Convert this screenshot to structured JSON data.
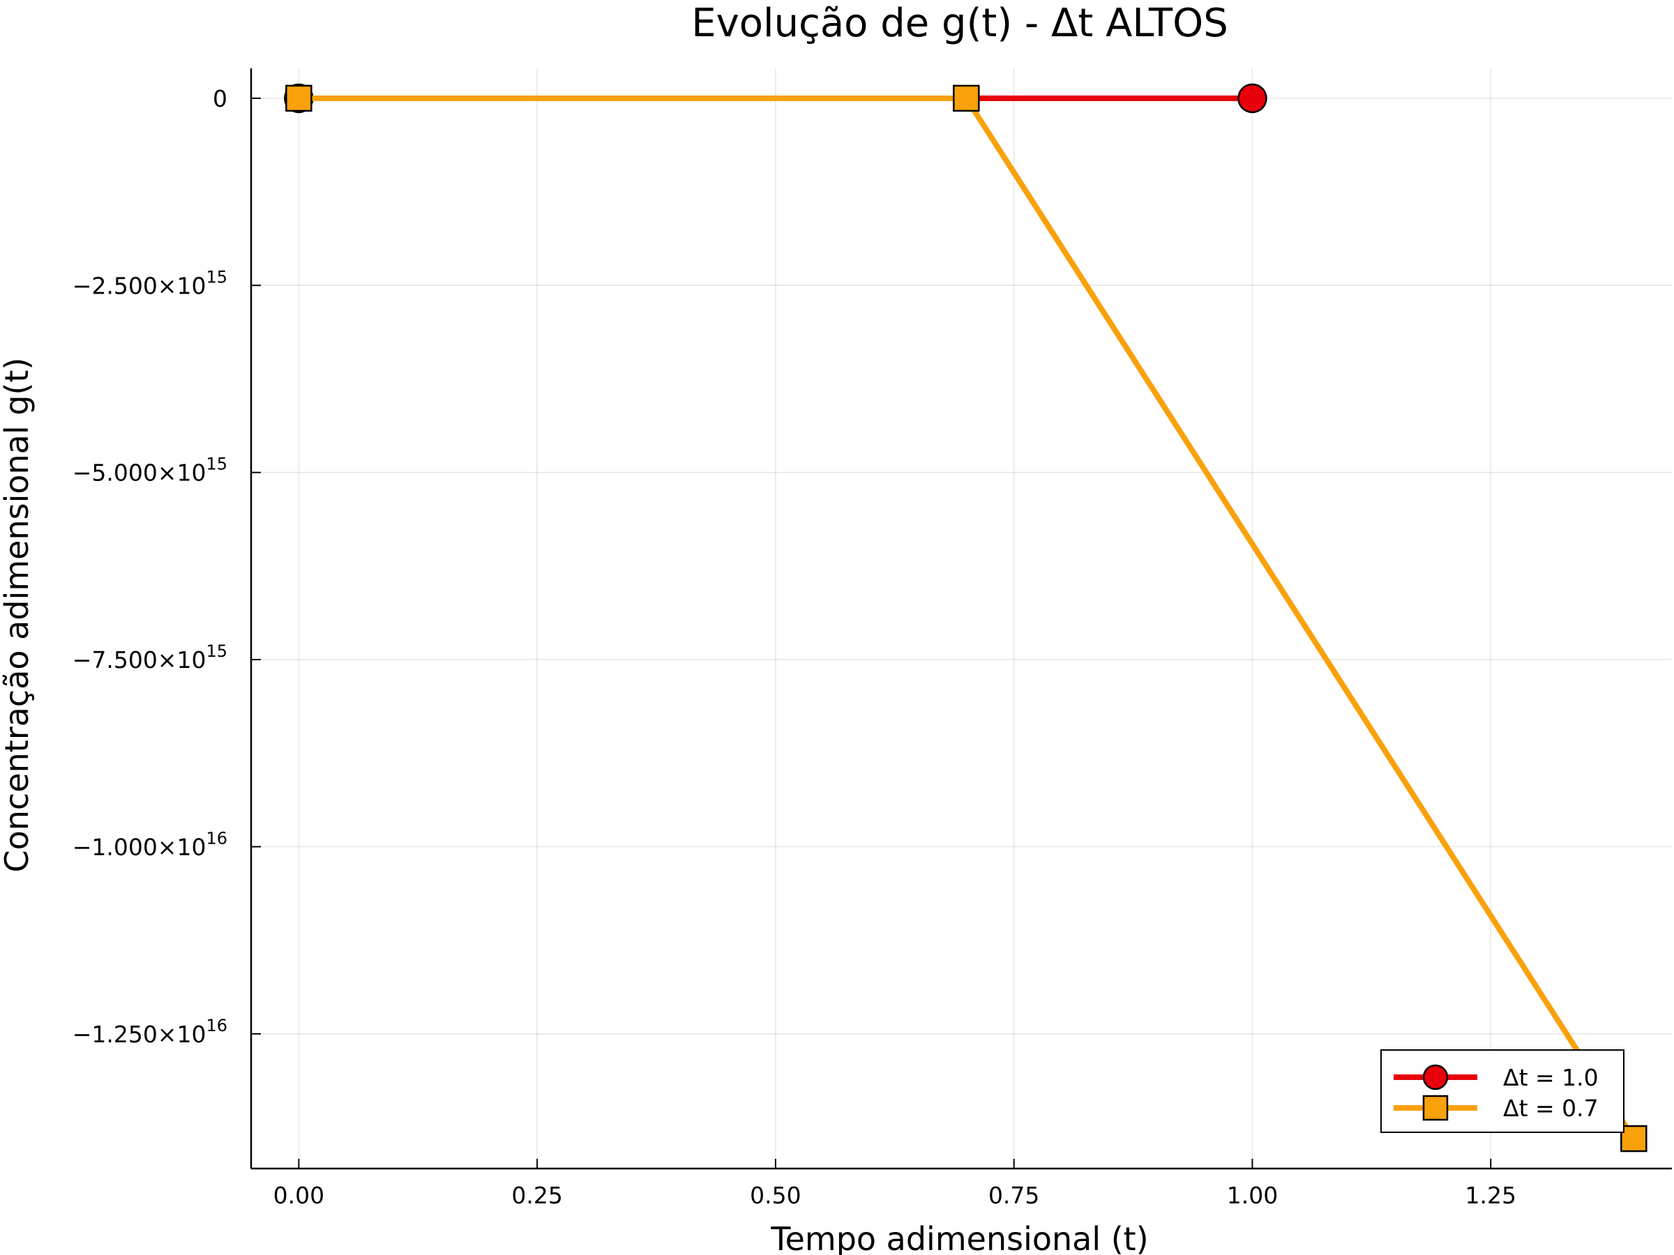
{
  "chart_data": {
    "type": "line",
    "title": "Evolução de g(t) - Δt ALTOS",
    "xlabel": "Tempo adimensional (t)",
    "ylabel": "Concentração adimensional g(t)",
    "xlim": [
      -0.05,
      1.44
    ],
    "ylim": [
      -14300000000000000,
      400000000000000
    ],
    "x_ticks": [
      {
        "value": 0.0,
        "label": "0.00"
      },
      {
        "value": 0.25,
        "label": "0.25"
      },
      {
        "value": 0.5,
        "label": "0.50"
      },
      {
        "value": 0.75,
        "label": "0.75"
      },
      {
        "value": 1.0,
        "label": "1.00"
      },
      {
        "value": 1.25,
        "label": "1.25"
      }
    ],
    "y_ticks": [
      {
        "value": 0,
        "mantissa": "0",
        "exponent": ""
      },
      {
        "value": -2500000000000000,
        "mantissa": "−2.500×10",
        "exponent": "15"
      },
      {
        "value": -5000000000000000,
        "mantissa": "−5.000×10",
        "exponent": "15"
      },
      {
        "value": -7500000000000000,
        "mantissa": "−7.500×10",
        "exponent": "15"
      },
      {
        "value": -10000000000000000,
        "mantissa": "−1.000×10",
        "exponent": "16"
      },
      {
        "value": -12500000000000000,
        "mantissa": "−1.250×10",
        "exponent": "16"
      }
    ],
    "grid": true,
    "legend_position": "bottom-right",
    "series": [
      {
        "name": "Δt = 1.0",
        "color": "#e8000b",
        "marker": "circle",
        "x": [
          0.0,
          1.0
        ],
        "y": [
          0,
          0
        ]
      },
      {
        "name": "Δt = 0.7",
        "color": "#f9a10a",
        "marker": "square",
        "x": [
          0.0,
          0.7,
          1.4
        ],
        "y": [
          0,
          0,
          -13900000000000000
        ]
      }
    ]
  }
}
